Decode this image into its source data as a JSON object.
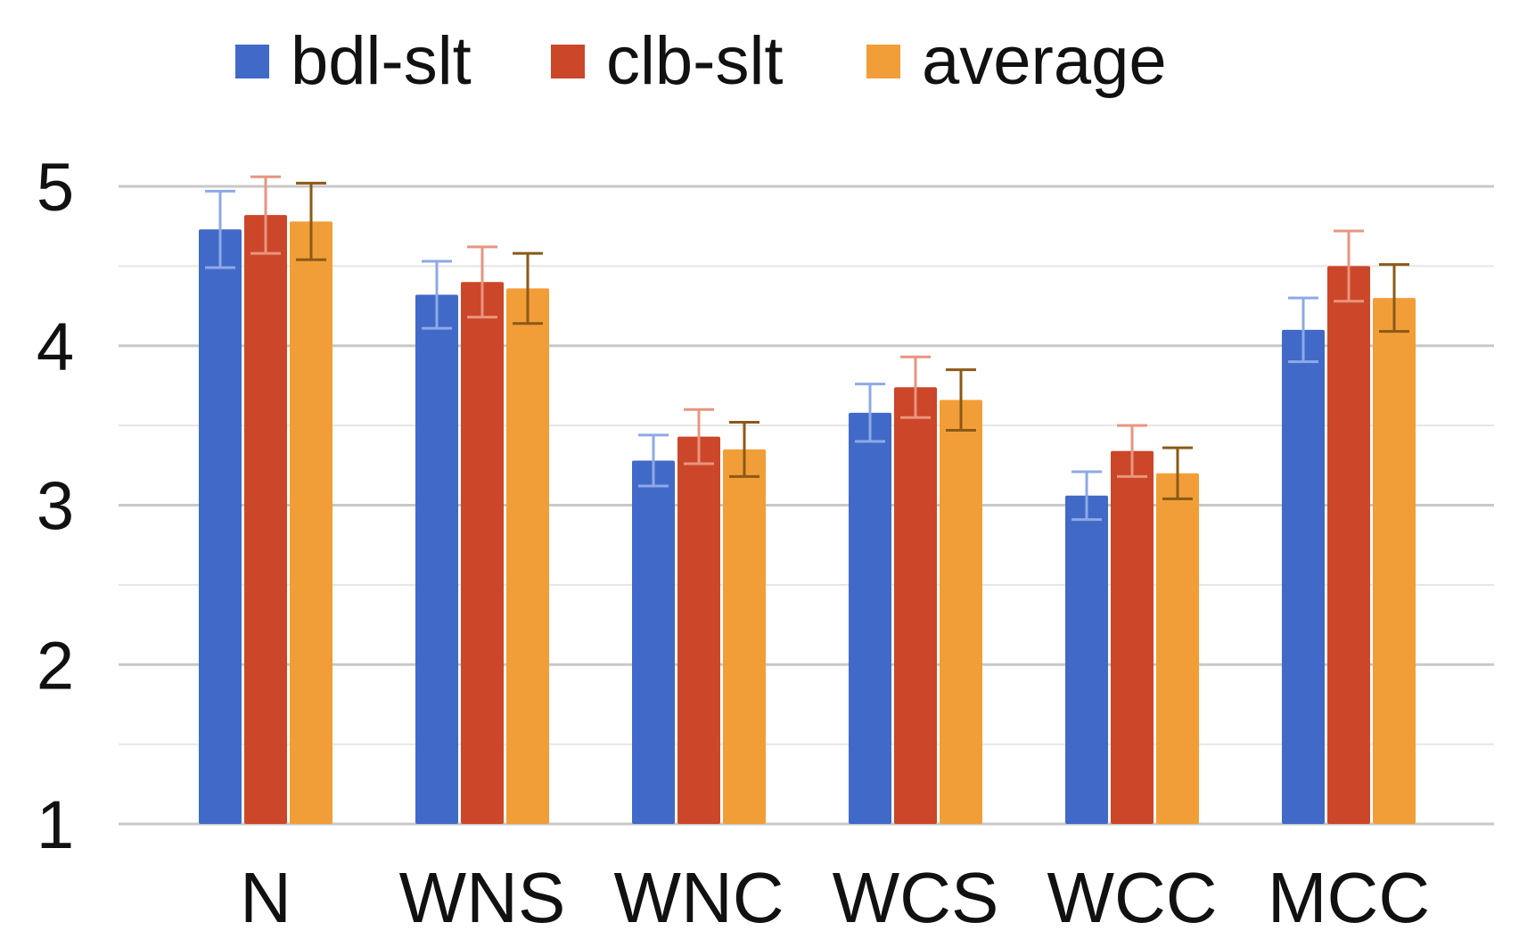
{
  "chart_data": {
    "type": "bar",
    "title": "",
    "xlabel": "",
    "ylabel": "",
    "categories": [
      "N",
      "WNS",
      "WNC",
      "WCS",
      "WCC",
      "MCC"
    ],
    "series": [
      {
        "name": "bdl-slt",
        "color": "#4169C8",
        "error_color": "#8FA9E6",
        "values": [
          4.73,
          4.32,
          3.28,
          3.58,
          3.06,
          4.1
        ],
        "error": [
          0.24,
          0.21,
          0.16,
          0.18,
          0.15,
          0.2
        ]
      },
      {
        "name": "clb-slt",
        "color": "#CC4629",
        "error_color": "#E8957F",
        "values": [
          4.82,
          4.4,
          3.43,
          3.74,
          3.34,
          4.5
        ],
        "error": [
          0.24,
          0.22,
          0.17,
          0.19,
          0.16,
          0.22
        ]
      },
      {
        "name": "average",
        "color": "#F29E38",
        "error_color": "#8B5A16",
        "values": [
          4.78,
          4.36,
          3.35,
          3.66,
          3.2,
          4.3
        ],
        "error": [
          0.24,
          0.22,
          0.17,
          0.19,
          0.16,
          0.21
        ]
      }
    ],
    "ylim": [
      1,
      5
    ],
    "yticks": [
      "1",
      "2",
      "3",
      "4",
      "5"
    ],
    "minor_grid_step": 0.5,
    "grid": true,
    "legend_position": "top-center",
    "gridline_color": "#C8C8C8",
    "minor_gridline_color": "#E6E6E6"
  }
}
